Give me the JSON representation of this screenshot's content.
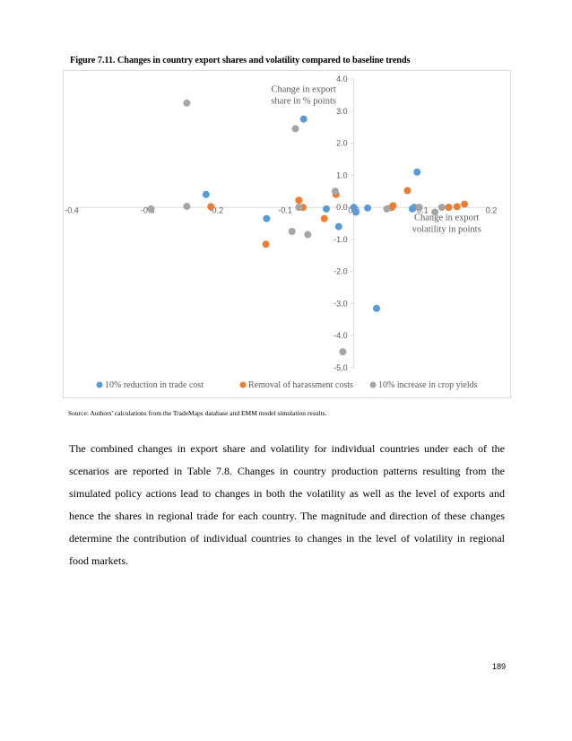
{
  "figure_title": "Figure 7.11. Changes in country export shares and volatility compared to baseline trends",
  "source_note": "Source: Authors' calculations from the TradeMaps database and EMM model simulation results.",
  "body_paragraph": "The combined changes in export share and volatility for individual countries under each of the scenarios are reported in Table 7.8. Changes in country production patterns resulting from the simulated policy actions lead to changes in both the volatility as well as the level of exports and hence the shares in regional trade for each country. The magnitude and direction of these changes determine the contribution of individual countries to changes in the level of volatility in regional food markets.",
  "page_number": "189",
  "chart_data": {
    "type": "scatter",
    "title": "",
    "xlabel": "Change in export volatility in points",
    "ylabel": "Change in export share in % points",
    "xlabel_lines": [
      "Change in export",
      "volatility in points"
    ],
    "ylabel_lines": [
      "Change in export",
      "share in % points"
    ],
    "xlim": [
      -0.4,
      0.2
    ],
    "ylim": [
      -5.0,
      4.0
    ],
    "x_ticks": [
      -0.4,
      -0.3,
      -0.2,
      -0.1,
      0.0,
      0.1,
      0.2
    ],
    "x_tick_labels": [
      "-0.4",
      "-0.3",
      "-0.2",
      "-0.1",
      "0.0",
      "0.1",
      "0.2"
    ],
    "y_ticks": [
      4,
      3,
      2,
      1,
      0,
      -1,
      -2,
      -3,
      -4,
      -5
    ],
    "y_tick_labels": [
      "4.0",
      "3.0",
      "2.0",
      "1.0",
      "0.0",
      "-1.0",
      "-2.0",
      "-3.0",
      "-4.0",
      "-5.0"
    ],
    "grid": false,
    "legend_position": "bottom",
    "series": [
      {
        "name": "10% reduction in trade cost",
        "color": "#5b9bd5",
        "points": [
          [
            -0.215,
            0.4
          ],
          [
            -0.127,
            -0.35
          ],
          [
            -0.073,
            2.75
          ],
          [
            -0.04,
            -0.05
          ],
          [
            -0.022,
            -0.6
          ],
          [
            0.0,
            0.0
          ],
          [
            0.003,
            -0.15
          ],
          [
            0.02,
            -0.02
          ],
          [
            0.033,
            -3.15
          ],
          [
            0.085,
            -0.05
          ],
          [
            0.088,
            0.0
          ],
          [
            0.092,
            1.1
          ]
        ]
      },
      {
        "name": "Removal of harassment costs",
        "color": "#ed7d31",
        "points": [
          [
            -0.208,
            0.02
          ],
          [
            -0.128,
            -1.15
          ],
          [
            -0.08,
            0.22
          ],
          [
            -0.074,
            0.0
          ],
          [
            -0.043,
            -0.35
          ],
          [
            -0.026,
            0.4
          ],
          [
            0.055,
            0.0
          ],
          [
            0.057,
            0.05
          ],
          [
            0.078,
            0.52
          ],
          [
            0.138,
            0.0
          ],
          [
            0.15,
            0.02
          ],
          [
            0.161,
            0.1
          ]
        ]
      },
      {
        "name": "10% increase in crop yields",
        "color": "#a5a5a5",
        "points": [
          [
            -0.243,
            3.25
          ],
          [
            -0.295,
            -0.05
          ],
          [
            -0.243,
            0.03
          ],
          [
            -0.085,
            2.45
          ],
          [
            -0.09,
            -0.75
          ],
          [
            -0.08,
            0.0
          ],
          [
            -0.067,
            -0.85
          ],
          [
            -0.027,
            0.5
          ],
          [
            -0.016,
            -4.5
          ],
          [
            0.048,
            -0.05
          ],
          [
            0.095,
            0.0
          ],
          [
            0.118,
            -0.15
          ],
          [
            0.128,
            0.0
          ]
        ]
      }
    ]
  }
}
